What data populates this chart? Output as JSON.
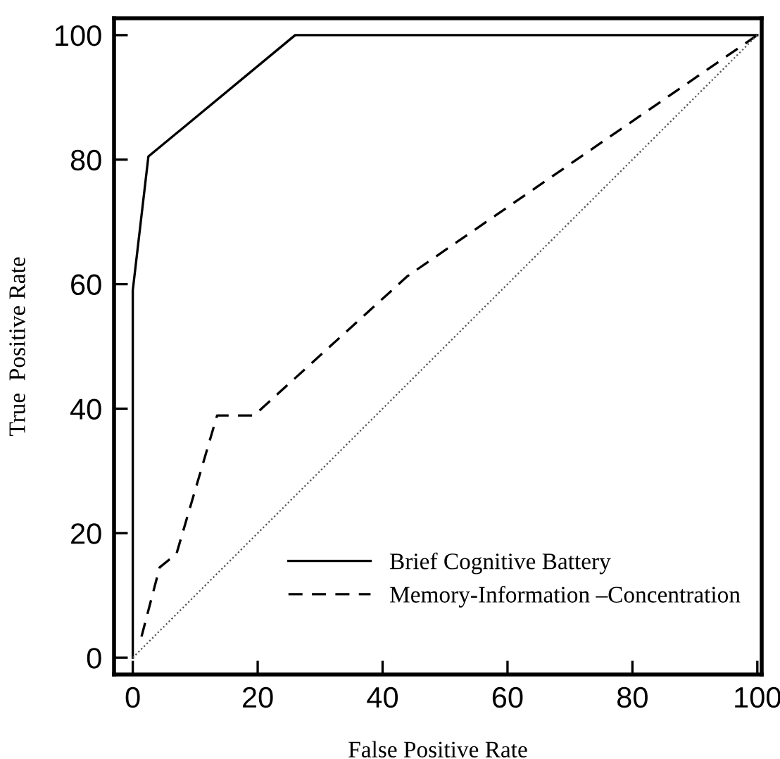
{
  "chart_data": {
    "type": "line",
    "xlabel": "False Positive Rate",
    "ylabel": "True  Positive Rate",
    "xlim": [
      -3,
      100.7
    ],
    "ylim": [
      -2.7,
      102.7
    ],
    "xticks": [
      0,
      20,
      40,
      60,
      80,
      100
    ],
    "yticks": [
      0,
      20,
      40,
      60,
      80,
      100
    ],
    "legend": "bottom right",
    "grid": false,
    "marker": "none",
    "series": [
      {
        "name": "Brief Cognitive Battery",
        "color": "#000000",
        "line_style": "solid",
        "x": [
          0,
          0,
          2.5,
          26,
          100
        ],
        "values": [
          0,
          59,
          80.5,
          100,
          100
        ]
      },
      {
        "name": "Memory-Information –Concentration",
        "color": "#000000",
        "line_style": "dashed",
        "x": [
          1.4,
          4.3,
          7,
          13.5,
          19.4,
          44,
          100
        ],
        "values": [
          3.4,
          14.5,
          16.7,
          38.9,
          38.9,
          61.3,
          100
        ]
      },
      {
        "color": "#555555",
        "line_style": "dotted",
        "x": [
          0,
          100
        ],
        "values": [
          0,
          100
        ]
      }
    ]
  }
}
